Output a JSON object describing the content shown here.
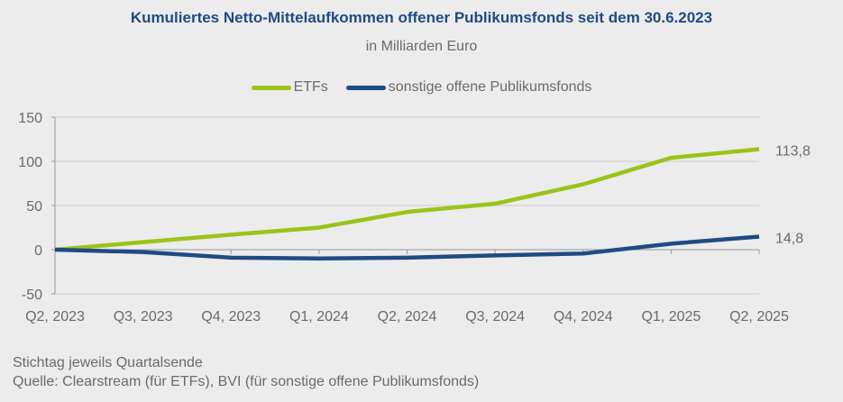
{
  "chart_data": {
    "type": "line",
    "title": "Kumuliertes Netto-Mittelaufkommen offener Publikumsfonds seit dem 30.6.2023",
    "subtitle": "in Milliarden Euro",
    "categories": [
      "Q2, 2023",
      "Q3, 2023",
      "Q4, 2023",
      "Q1, 2024",
      "Q2, 2024",
      "Q3, 2024",
      "Q4, 2024",
      "Q1, 2025",
      "Q2, 2025"
    ],
    "series": [
      {
        "name": "ETFs",
        "color": "#9bc31b",
        "values": [
          0,
          8.5,
          17,
          25,
          42.7,
          52,
          74,
          104,
          113.8
        ],
        "end_label": "113,8"
      },
      {
        "name": "sonstige offene Publikumsfonds",
        "color": "#1f4b84",
        "values": [
          0,
          -2.7,
          -9,
          -10,
          -9,
          -6.5,
          -4.4,
          6.8,
          14.8
        ],
        "end_label": "14,8"
      }
    ],
    "ylim": [
      -50,
      150
    ],
    "yticks": [
      "150",
      "100",
      "50",
      "0",
      "-50"
    ],
    "ytick_values": [
      150,
      100,
      50,
      0,
      -50
    ],
    "grid": true,
    "legend": "top"
  },
  "footer": {
    "line1": "Stichtag jeweils Quartalsende",
    "line2": "Quelle: Clearstream (für ETFs), BVI (für sonstige offene Publikumsfonds)"
  }
}
